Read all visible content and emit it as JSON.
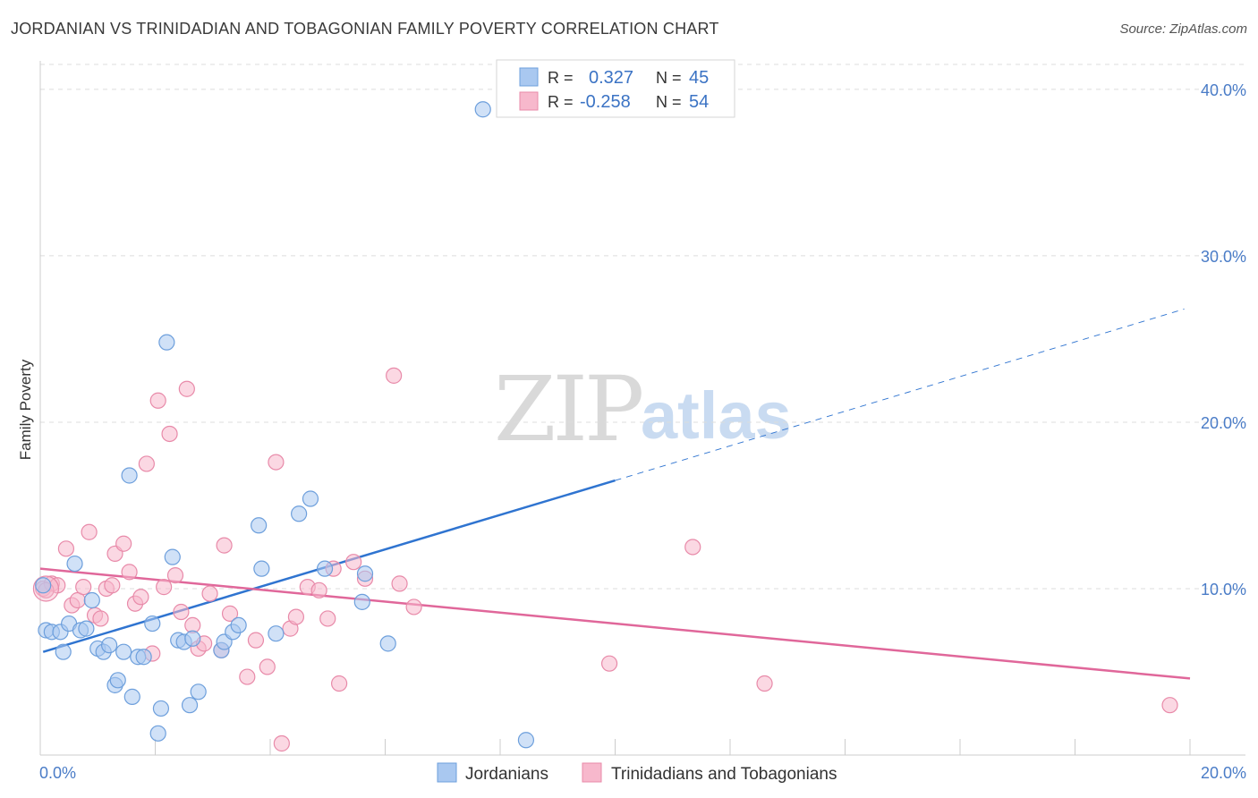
{
  "header": {
    "title": "JORDANIAN VS TRINIDADIAN AND TOBAGONIAN FAMILY POVERTY CORRELATION CHART",
    "source": "Source: ZipAtlas.com"
  },
  "watermark": {
    "zip": "ZIP",
    "atlas": "atlas"
  },
  "colors": {
    "jordanian_fill": "#a9c8f0",
    "jordanian_stroke": "#6d9fdc",
    "jordanian_line": "#2f74d0",
    "trinidadian_fill": "#f7b8cc",
    "trinidadian_stroke": "#e88aa9",
    "trinidadian_line": "#e0679a",
    "grid": "#dcdcdc",
    "tick_text": "#4a7cc7"
  },
  "stats_legend": {
    "rows": [
      {
        "r_label": "R =",
        "r_value": "0.327",
        "n_label": "N =",
        "n_value": "45"
      },
      {
        "r_label": "R =",
        "r_value": "-0.258",
        "n_label": "N =",
        "n_value": "54"
      }
    ]
  },
  "bottom_legend": {
    "items": [
      "Jordanians",
      "Trinidadians and Tobagonians"
    ]
  },
  "chart_data": {
    "type": "scatter",
    "title": "JORDANIAN VS TRINIDADIAN AND TOBAGONIAN FAMILY POVERTY CORRELATION CHART",
    "xlabel": "",
    "ylabel": "Family Poverty",
    "xlim": [
      0,
      20
    ],
    "ylim": [
      0,
      41.5
    ],
    "x_tick_labels": [
      "0.0%",
      "20.0%"
    ],
    "y_ticks": [
      10,
      20,
      30,
      40
    ],
    "y_tick_labels": [
      "10.0%",
      "20.0%",
      "30.0%",
      "40.0%"
    ],
    "grid": "horizontal dashed",
    "legend_position": "top-center and bottom",
    "series": [
      {
        "name": "Jordanians",
        "R": 0.327,
        "N": 45,
        "points": [
          [
            0.05,
            10.2
          ],
          [
            0.1,
            7.5
          ],
          [
            0.2,
            7.4
          ],
          [
            0.35,
            7.4
          ],
          [
            0.4,
            6.2
          ],
          [
            0.5,
            7.9
          ],
          [
            0.6,
            11.5
          ],
          [
            0.7,
            7.5
          ],
          [
            0.8,
            7.6
          ],
          [
            0.9,
            9.3
          ],
          [
            1.0,
            6.4
          ],
          [
            1.1,
            6.2
          ],
          [
            1.2,
            6.6
          ],
          [
            1.3,
            4.2
          ],
          [
            1.35,
            4.5
          ],
          [
            1.45,
            6.2
          ],
          [
            1.55,
            16.8
          ],
          [
            1.6,
            3.5
          ],
          [
            1.7,
            5.9
          ],
          [
            1.8,
            5.9
          ],
          [
            1.95,
            7.9
          ],
          [
            2.05,
            1.3
          ],
          [
            2.1,
            2.8
          ],
          [
            2.2,
            24.8
          ],
          [
            2.3,
            11.9
          ],
          [
            2.4,
            6.9
          ],
          [
            2.5,
            6.8
          ],
          [
            2.6,
            3.0
          ],
          [
            2.65,
            7.0
          ],
          [
            2.75,
            3.8
          ],
          [
            3.15,
            6.3
          ],
          [
            3.2,
            6.8
          ],
          [
            3.35,
            7.4
          ],
          [
            3.45,
            7.8
          ],
          [
            3.8,
            13.8
          ],
          [
            3.85,
            11.2
          ],
          [
            4.1,
            7.3
          ],
          [
            4.5,
            14.5
          ],
          [
            4.7,
            15.4
          ],
          [
            4.95,
            11.2
          ],
          [
            5.6,
            9.2
          ],
          [
            5.65,
            10.9
          ],
          [
            6.05,
            6.7
          ],
          [
            7.7,
            38.8
          ],
          [
            8.45,
            0.9
          ]
        ],
        "trend": {
          "x0": 0.05,
          "y0": 6.2,
          "x_solid_end": 10.0,
          "y_solid_end": 16.5,
          "x1": 19.9,
          "y1": 26.8
        }
      },
      {
        "name": "Trinidadians and Tobagonians",
        "R": -0.258,
        "N": 54,
        "points": [
          [
            0.05,
            10.0
          ],
          [
            0.2,
            10.3
          ],
          [
            0.3,
            10.2
          ],
          [
            0.45,
            12.4
          ],
          [
            0.55,
            9.0
          ],
          [
            0.65,
            9.3
          ],
          [
            0.75,
            10.1
          ],
          [
            0.85,
            13.4
          ],
          [
            0.95,
            8.4
          ],
          [
            1.05,
            8.2
          ],
          [
            1.15,
            10.0
          ],
          [
            1.25,
            10.2
          ],
          [
            1.3,
            12.1
          ],
          [
            1.45,
            12.7
          ],
          [
            1.55,
            11.0
          ],
          [
            1.65,
            9.1
          ],
          [
            1.75,
            9.5
          ],
          [
            1.85,
            17.5
          ],
          [
            1.95,
            6.1
          ],
          [
            2.05,
            21.3
          ],
          [
            2.15,
            10.1
          ],
          [
            2.25,
            19.3
          ],
          [
            2.35,
            10.8
          ],
          [
            2.45,
            8.6
          ],
          [
            2.55,
            22.0
          ],
          [
            2.65,
            7.8
          ],
          [
            2.75,
            6.4
          ],
          [
            2.85,
            6.7
          ],
          [
            2.95,
            9.7
          ],
          [
            3.15,
            6.3
          ],
          [
            3.2,
            12.6
          ],
          [
            3.3,
            8.5
          ],
          [
            3.6,
            4.7
          ],
          [
            3.75,
            6.9
          ],
          [
            3.95,
            5.3
          ],
          [
            4.1,
            17.6
          ],
          [
            4.2,
            0.7
          ],
          [
            4.35,
            7.6
          ],
          [
            4.45,
            8.3
          ],
          [
            4.65,
            10.1
          ],
          [
            4.85,
            9.9
          ],
          [
            5.0,
            8.2
          ],
          [
            5.1,
            11.2
          ],
          [
            5.2,
            4.3
          ],
          [
            5.45,
            11.6
          ],
          [
            5.65,
            10.6
          ],
          [
            6.15,
            22.8
          ],
          [
            6.25,
            10.3
          ],
          [
            6.5,
            8.9
          ],
          [
            9.9,
            5.5
          ],
          [
            11.35,
            12.5
          ],
          [
            12.6,
            4.3
          ],
          [
            19.65,
            3.0
          ],
          [
            0.1,
            9.9
          ]
        ],
        "trend": {
          "x0": 0.0,
          "y0": 11.2,
          "x1": 20.0,
          "y1": 4.6
        }
      }
    ]
  }
}
